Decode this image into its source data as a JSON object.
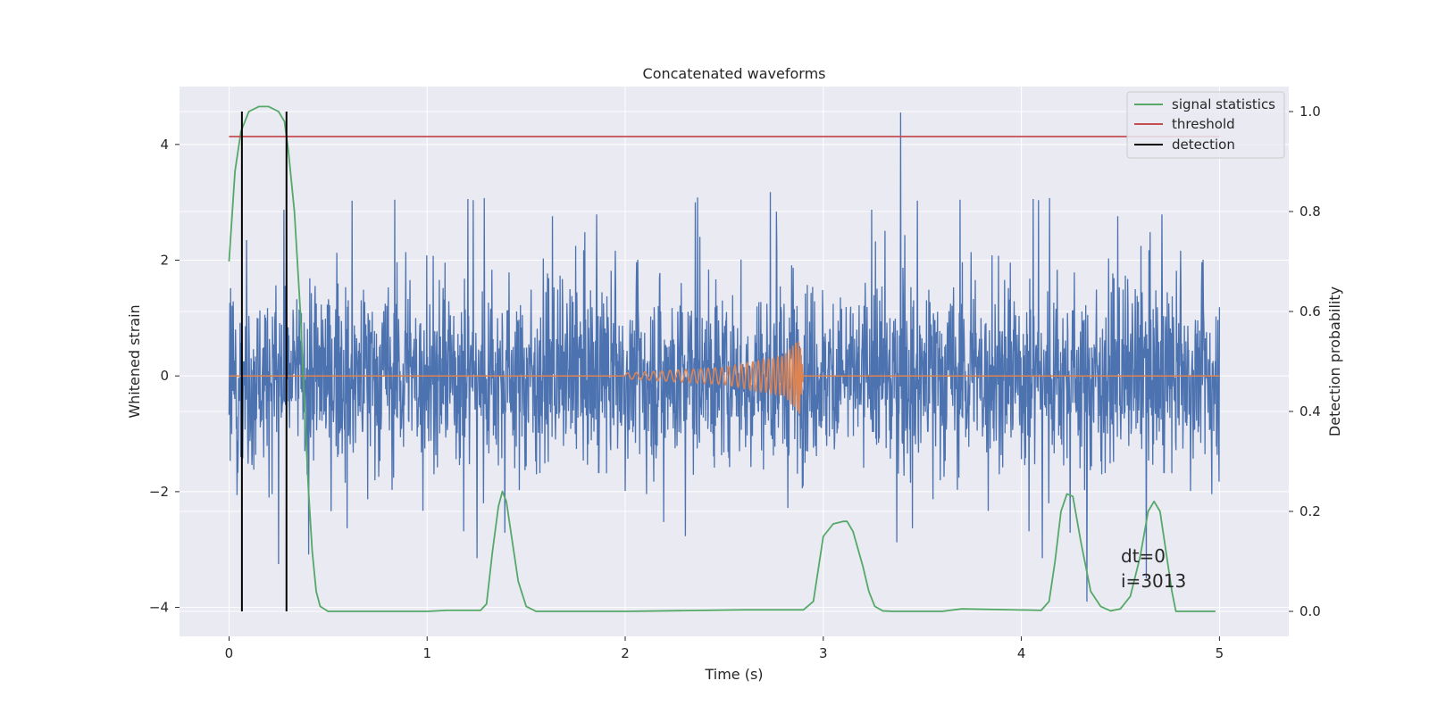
{
  "chart_data": {
    "type": "line",
    "title": "Concatenated waveforms",
    "xlabel": "Time (s)",
    "ylabel": "Whitened strain",
    "y2label": "Detection probability",
    "xlim": [
      -0.25,
      5.35
    ],
    "ylim": [
      -4.5,
      5.0
    ],
    "y2lim": [
      -0.05,
      1.05
    ],
    "x_ticks": [
      0,
      1,
      2,
      3,
      4,
      5
    ],
    "y_ticks": [
      -4,
      -2,
      0,
      2,
      4
    ],
    "y2_ticks": [
      0.0,
      0.2,
      0.4,
      0.6,
      0.8,
      1.0
    ],
    "x_tick_labels": [
      "0",
      "1",
      "2",
      "3",
      "4",
      "5"
    ],
    "y_tick_labels": [
      "−4",
      "−2",
      "0",
      "2",
      "4"
    ],
    "y2_tick_labels": [
      "0.0",
      "0.2",
      "0.4",
      "0.6",
      "0.8",
      "1.0"
    ],
    "grid": true,
    "legend_position": "top-right",
    "colors": {
      "strain": "#4c72b0",
      "template": "#dd8452",
      "signal_statistics": "#55a868",
      "threshold": "#c44e52",
      "detection": "#000000",
      "background": "#eaeaf2",
      "grid": "#ffffff"
    },
    "series": [
      {
        "name": "",
        "role": "whitened-strain-noise",
        "axis": "left",
        "x_range": [
          0,
          5
        ],
        "envelope_max": 3.3,
        "envelope_min": -3.3,
        "spikes": [
          [
            3.39,
            4.55
          ],
          [
            4.33,
            -3.9
          ],
          [
            0.25,
            -3.25
          ],
          [
            4.63,
            -3.5
          ],
          [
            0.29,
            2.6
          ]
        ]
      },
      {
        "name": "",
        "role": "injected-waveform",
        "axis": "left",
        "x": [
          0,
          2.0,
          2.5,
          2.8,
          2.88,
          2.9,
          5.0
        ],
        "amplitude": [
          0,
          0.05,
          0.15,
          0.35,
          0.65,
          0,
          0
        ]
      },
      {
        "name": "signal statistics",
        "axis": "right",
        "x": [
          0.0,
          0.03,
          0.06,
          0.1,
          0.15,
          0.2,
          0.25,
          0.28,
          0.3,
          0.33,
          0.36,
          0.38,
          0.4,
          0.42,
          0.44,
          0.46,
          0.5,
          1.0,
          1.1,
          1.2,
          1.27,
          1.3,
          1.33,
          1.36,
          1.38,
          1.4,
          1.43,
          1.46,
          1.5,
          1.55,
          1.6,
          2.0,
          2.6,
          2.9,
          2.95,
          3.0,
          3.05,
          3.1,
          3.12,
          3.15,
          3.2,
          3.23,
          3.26,
          3.3,
          3.35,
          3.6,
          3.7,
          4.1,
          4.14,
          4.17,
          4.2,
          4.23,
          4.26,
          4.3,
          4.35,
          4.4,
          4.45,
          4.5,
          4.55,
          4.6,
          4.64,
          4.67,
          4.7,
          4.73,
          4.76,
          4.78,
          4.8,
          4.85,
          4.9,
          4.98
        ],
        "y": [
          0.7,
          0.88,
          0.96,
          1.0,
          1.01,
          1.01,
          1.0,
          0.98,
          0.92,
          0.8,
          0.6,
          0.42,
          0.25,
          0.12,
          0.04,
          0.01,
          0.0,
          0.0,
          0.002,
          0.002,
          0.002,
          0.015,
          0.12,
          0.21,
          0.24,
          0.22,
          0.14,
          0.06,
          0.01,
          0.0,
          0.0,
          0.0,
          0.003,
          0.003,
          0.02,
          0.15,
          0.175,
          0.18,
          0.18,
          0.16,
          0.09,
          0.04,
          0.01,
          0.001,
          0.0,
          0.0,
          0.005,
          0.002,
          0.02,
          0.1,
          0.2,
          0.235,
          0.23,
          0.14,
          0.04,
          0.01,
          0.001,
          0.005,
          0.03,
          0.11,
          0.2,
          0.22,
          0.2,
          0.12,
          0.04,
          0.0,
          0.0,
          0.0,
          0.0,
          0.0
        ]
      },
      {
        "name": "threshold",
        "axis": "right",
        "x": [
          0.0,
          5.0
        ],
        "y": [
          0.95,
          0.95
        ]
      },
      {
        "name": "detection",
        "axis": "right",
        "type": "vlines",
        "x": [
          0.065,
          0.29
        ],
        "y_range": [
          0.0,
          1.0
        ]
      }
    ],
    "annotations": [
      "dt=0",
      "i=3013"
    ]
  }
}
